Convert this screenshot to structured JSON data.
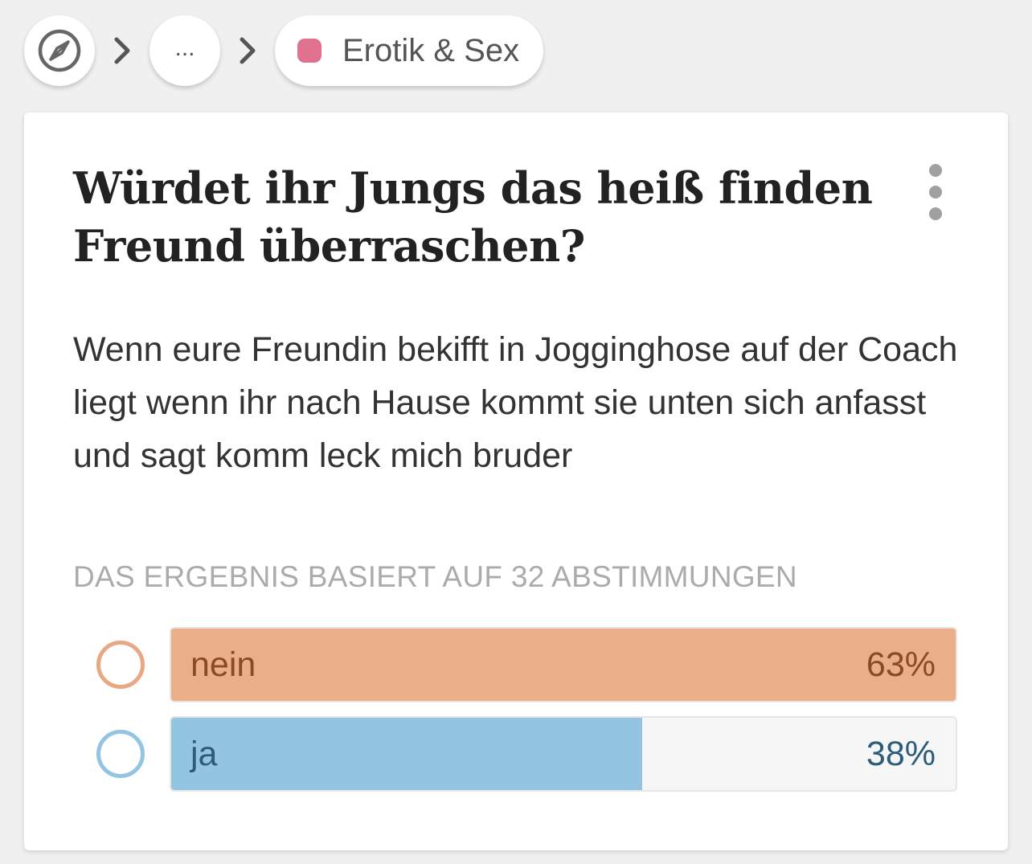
{
  "breadcrumb": {
    "home_icon": "compass-icon",
    "separator_icon": "chevron-right-icon",
    "ellipsis": "...",
    "category": {
      "label": "Erotik & Sex",
      "color": "#e0718f"
    }
  },
  "question": {
    "title": "Würdet ihr Jungs das heiß finden Freund überraschen?",
    "body": "Wenn eure Freundin bekifft in Jogginghose auf der Coach liegt wenn ihr nach Hause kommt sie unten sich anfasst und sagt komm leck mich bruder",
    "menu_icon": "more-vertical-icon"
  },
  "poll": {
    "result_caption": "DAS ERGEBNIS BASIERT AUF 32 ABSTIMMUNGEN",
    "options": [
      {
        "label": "nein",
        "percent_label": "63%",
        "share": 1.0,
        "fill_color": "#eaae88",
        "ring_color": "#e8a884",
        "text_color": "#8a4a26"
      },
      {
        "label": "ja",
        "percent_label": "38%",
        "share": 0.6,
        "fill_color": "#93c4e1",
        "ring_color": "#93c4e1",
        "text_color": "#2c5c7a"
      }
    ]
  }
}
